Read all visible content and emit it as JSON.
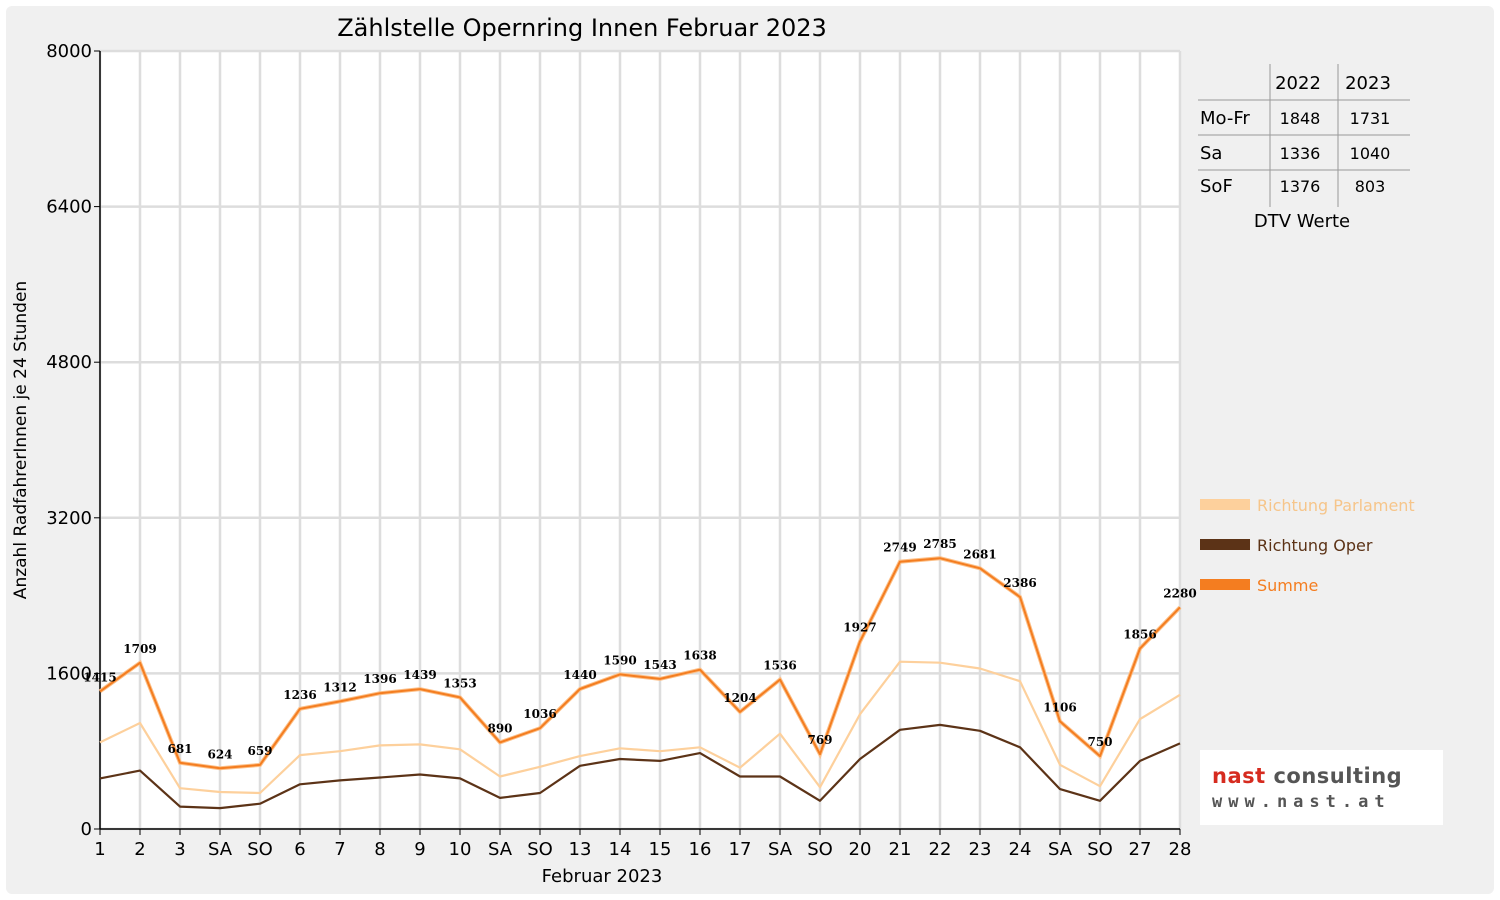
{
  "chart_data": {
    "type": "line",
    "title": "Zählstelle Opernring Innen Februar 2023",
    "xlabel": "Februar 2023",
    "ylabel": "Anzahl RadfahrerInnen je 24 Stunden",
    "ylim": [
      0,
      8000
    ],
    "yticks": [
      "0",
      "1600",
      "3200",
      "4800",
      "6400",
      "8000"
    ],
    "grid": true,
    "legend_position": "right",
    "categories": [
      "1",
      "2",
      "3",
      "SA",
      "SO",
      "6",
      "7",
      "8",
      "9",
      "10",
      "SA",
      "SO",
      "13",
      "14",
      "15",
      "16",
      "17",
      "SA",
      "SO",
      "20",
      "21",
      "22",
      "23",
      "24",
      "SA",
      "SO",
      "27",
      "28"
    ],
    "weekend_sunday_color": "#ff0000",
    "sunday_indices": [
      4,
      11,
      18,
      25
    ],
    "series": [
      {
        "name": "Richtung Parlament",
        "color": "#fdd09c",
        "values": [
          890,
          1090,
          420,
          380,
          370,
          760,
          800,
          860,
          870,
          820,
          540,
          640,
          750,
          830,
          800,
          840,
          630,
          980,
          430,
          1180,
          1720,
          1710,
          1650,
          1520,
          660,
          440,
          1130,
          1380
        ]
      },
      {
        "name": "Richtung Oper",
        "color": "#5c3317",
        "values": [
          520,
          600,
          230,
          215,
          260,
          460,
          500,
          530,
          560,
          520,
          320,
          370,
          650,
          720,
          700,
          780,
          540,
          540,
          290,
          720,
          1020,
          1070,
          1010,
          840,
          410,
          290,
          700,
          880
        ]
      },
      {
        "name": "Summe",
        "color": "#f47d20",
        "values": [
          1415,
          1709,
          681,
          624,
          659,
          1236,
          1312,
          1396,
          1439,
          1353,
          890,
          1036,
          1440,
          1590,
          1543,
          1638,
          1204,
          1536,
          769,
          1927,
          2749,
          2785,
          2681,
          2386,
          1106,
          750,
          1856,
          2280
        ]
      }
    ],
    "data_labels": [
      "1415",
      "1709",
      "681",
      "624",
      "659",
      "1236",
      "1312",
      "1396",
      "1439",
      "1353",
      "890",
      "1036",
      "1440",
      "1590",
      "1543",
      "1638",
      "1204",
      "1536",
      "769",
      "1927",
      "2749",
      "2785",
      "2681",
      "2386",
      "1106",
      "750",
      "1856",
      "2280"
    ]
  },
  "dtv_table": {
    "caption": "DTV Werte",
    "headers": [
      "",
      "2022",
      "2023"
    ],
    "rows": [
      [
        "Mo-Fr",
        "1848",
        "1731"
      ],
      [
        "Sa",
        "1336",
        "1040"
      ],
      [
        "SoF",
        "1376",
        "803"
      ]
    ]
  },
  "logo": {
    "line1_a": "nast",
    "line1_b": " consulting",
    "line2": "www.nast.at"
  }
}
